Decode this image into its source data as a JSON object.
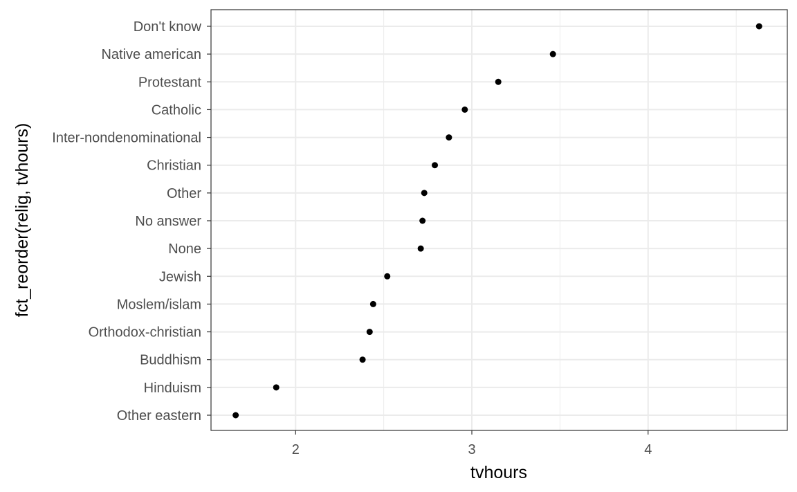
{
  "chart_data": {
    "type": "scatter",
    "xlabel": "tvhours",
    "ylabel": "fct_reorder(relig, tvhours)",
    "xlim": [
      1.52,
      4.79
    ],
    "x_ticks": [
      2,
      3,
      4
    ],
    "x_tick_labels": [
      "2",
      "3",
      "4"
    ],
    "grid": true,
    "categories": [
      "Don't know",
      "Native american",
      "Protestant",
      "Catholic",
      "Inter-nondenominational",
      "Christian",
      "Other",
      "No answer",
      "None",
      "Jewish",
      "Moslem/islam",
      "Orthodox-christian",
      "Buddhism",
      "Hinduism",
      "Other eastern"
    ],
    "values": [
      4.63,
      3.46,
      3.15,
      2.96,
      2.87,
      2.79,
      2.73,
      2.72,
      2.71,
      2.52,
      2.44,
      2.42,
      2.38,
      1.89,
      1.66
    ],
    "colors": {
      "point": "#000000",
      "grid": "#ebebeb",
      "border": "#333333"
    }
  }
}
